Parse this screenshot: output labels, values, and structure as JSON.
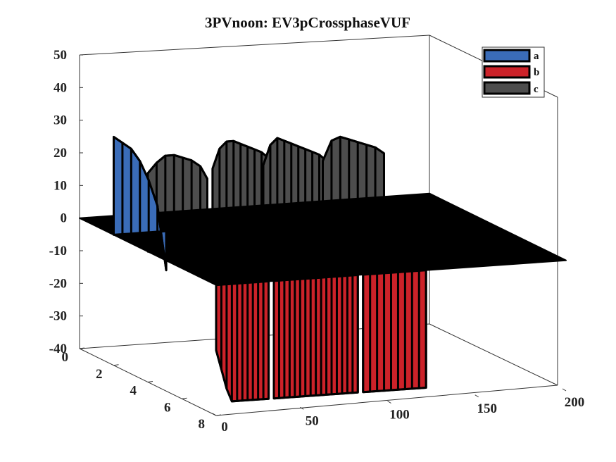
{
  "chart_data": {
    "type": "3d-surface",
    "title": "3PVnoon: EV3pCrossphaseVUF",
    "legend": {
      "position": "top-right",
      "entries": [
        {
          "label": "a",
          "color": "#3a6cb8"
        },
        {
          "label": "b",
          "color": "#cc2229"
        },
        {
          "label": "c",
          "color": "#4d4d4d"
        }
      ]
    },
    "axes": {
      "x": {
        "range": [
          0,
          200
        ],
        "ticks": [
          0,
          50,
          100,
          150,
          200
        ],
        "tick_labels": [
          "0",
          "50",
          "100",
          "150",
          "200"
        ]
      },
      "y": {
        "range": [
          0,
          8
        ],
        "ticks": [
          0,
          2,
          4,
          6,
          8
        ],
        "tick_labels": [
          "0",
          "2",
          "4",
          "6",
          "8"
        ]
      },
      "z": {
        "range": [
          -40,
          50
        ],
        "ticks": [
          -40,
          -30,
          -20,
          -10,
          0,
          10,
          20,
          30,
          40,
          50
        ],
        "tick_labels": [
          "-40",
          "-30",
          "-20",
          "-10",
          "0",
          "10",
          "20",
          "30",
          "40",
          "50"
        ]
      }
    },
    "series": [
      {
        "name": "a",
        "color": "#3a6cb8",
        "y_level": 0,
        "x": [
          0,
          5,
          10,
          15,
          20,
          25,
          30
        ],
        "z": [
          30,
          28,
          26,
          22,
          16,
          8,
          -12
        ]
      },
      {
        "name": "b",
        "color": "#cc2229",
        "y_level": 8,
        "segments": [
          {
            "x": [
              0,
              3,
              6,
              9,
              12,
              15,
              18,
              21,
              24,
              27,
              30
            ],
            "z": [
              -20,
              -26,
              -32,
              -36,
              -36,
              -36,
              -36,
              -36,
              -36,
              -36,
              -36
            ]
          },
          {
            "x": [
              33,
              36,
              39,
              42,
              45,
              48,
              51,
              54,
              57,
              60,
              63,
              66,
              69,
              72,
              75,
              78,
              81
            ],
            "z": [
              -36,
              -36,
              -36,
              -36,
              -36,
              -36,
              -36,
              -36,
              -36,
              -36,
              -36,
              -36,
              -36,
              -36,
              -36,
              -36,
              -36
            ]
          },
          {
            "x": [
              84,
              88,
              92,
              96,
              100,
              104,
              108,
              112,
              116,
              120
            ],
            "z": [
              -36,
              -36,
              -36,
              -36,
              -36,
              -36,
              -36,
              -36,
              -36,
              -36
            ]
          }
        ]
      },
      {
        "name": "c",
        "color": "#4d4d4d",
        "y_level": 4,
        "panels": [
          {
            "x": [
              0,
              5,
              10,
              15,
              20,
              25,
              30,
              34
            ],
            "z": [
              24,
              27,
              29,
              29,
              28,
              27,
              25,
              21
            ]
          },
          {
            "x": [
              37,
              41,
              45,
              49,
              53,
              57,
              61,
              65,
              69,
              73
            ],
            "z": [
              24,
              30,
              32,
              32,
              31,
              30,
              29,
              28,
              26,
              24
            ]
          },
          {
            "x": [
              66,
              70,
              74,
              78,
              82,
              86,
              90,
              94,
              98,
              102
            ],
            "z": [
              24,
              30,
              32,
              31,
              30,
              29,
              28,
              27,
              26,
              24
            ]
          },
          {
            "x": [
              100,
              105,
              110,
              115,
              120,
              125,
              130,
              135
            ],
            "z": [
              24,
              30,
              31,
              30,
              29,
              28,
              27,
              25
            ]
          }
        ]
      },
      {
        "name": "zero-plane",
        "color": "#000000",
        "x": [
          0,
          200
        ],
        "y": [
          0,
          8
        ],
        "z": 0
      }
    ]
  }
}
